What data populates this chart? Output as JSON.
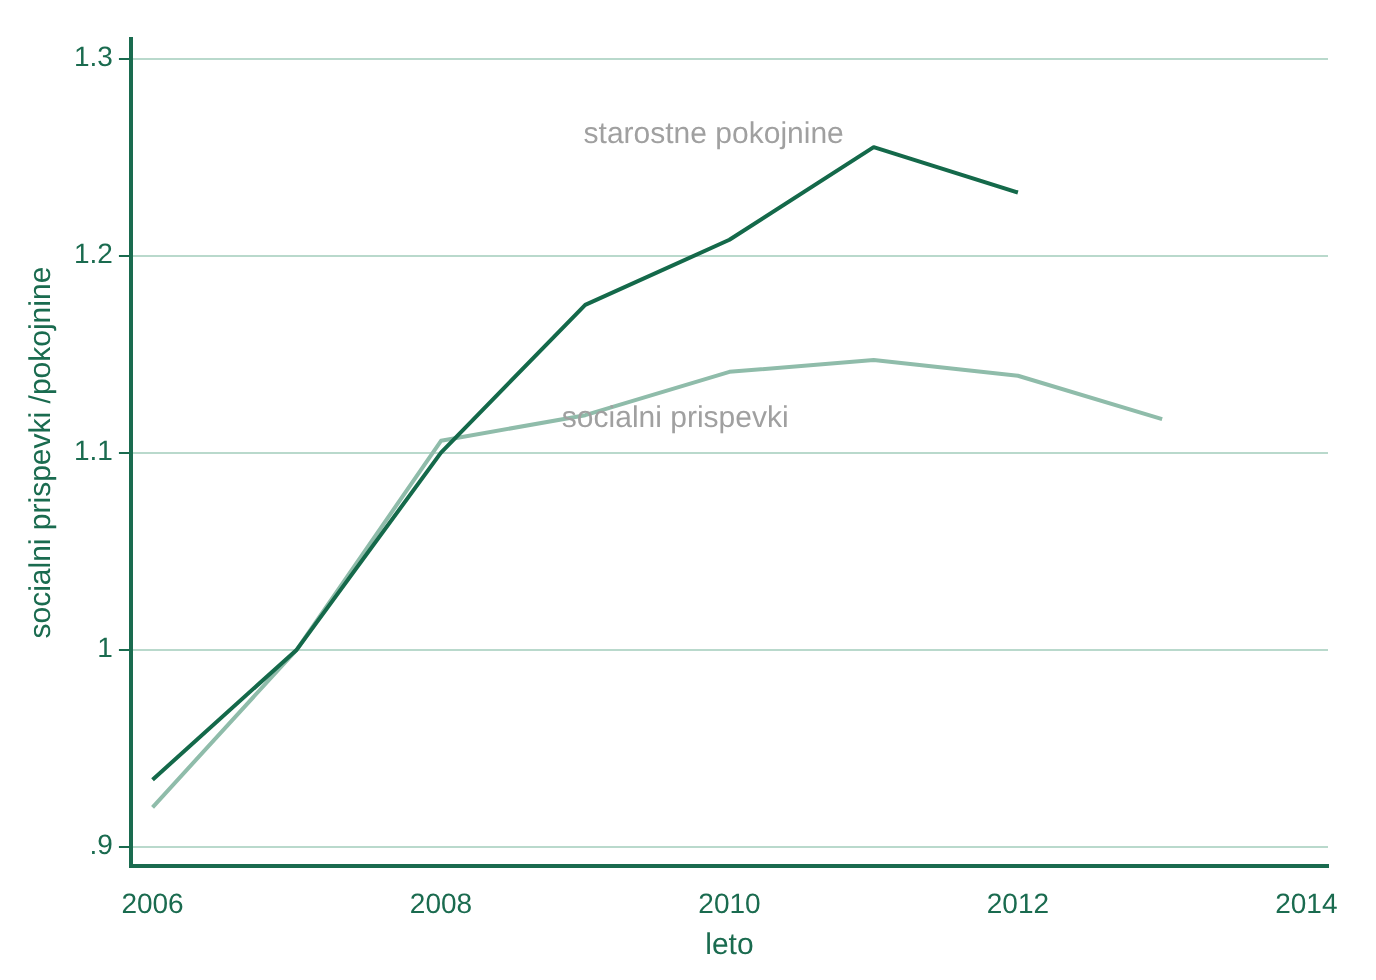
{
  "chart_data": {
    "type": "line",
    "xlabel": "leto",
    "ylabel": "socialni prispevki /pokojnine",
    "x": [
      2006,
      2007,
      2008,
      2009,
      2010,
      2011,
      2012,
      2013
    ],
    "series": [
      {
        "name": "starostne pokojnine",
        "color": "#14694a",
        "values": [
          0.934,
          1.0,
          1.1,
          1.175,
          1.208,
          1.255,
          1.232,
          null
        ]
      },
      {
        "name": "socialni prispevki",
        "color": "#8fbcaa",
        "values": [
          0.92,
          1.0,
          1.106,
          1.119,
          1.141,
          1.147,
          1.139,
          1.117
        ]
      }
    ],
    "xlim": [
      2005.85,
      2014.15
    ],
    "xticks": [
      2006,
      2008,
      2010,
      2012,
      2014
    ],
    "ylim": [
      0.89,
      1.31
    ],
    "yticks": [
      {
        "value": 0.9,
        "label": ".9"
      },
      1,
      1.1,
      1.2,
      1.3
    ],
    "grid": "y",
    "legend": false,
    "marker": "none",
    "line_style": "solid"
  }
}
